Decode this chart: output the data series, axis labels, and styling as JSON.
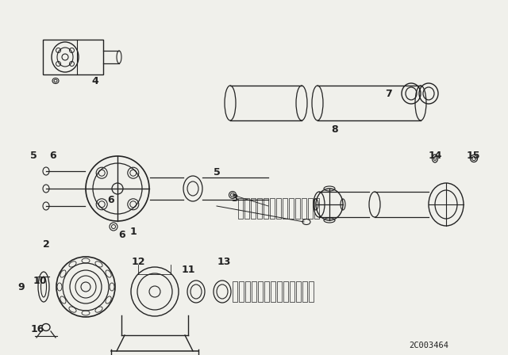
{
  "bg_color": "#f0f0eb",
  "line_color": "#222222",
  "diagram_code": "2C003464",
  "font_size_labels": 9,
  "font_size_code": 7.5
}
